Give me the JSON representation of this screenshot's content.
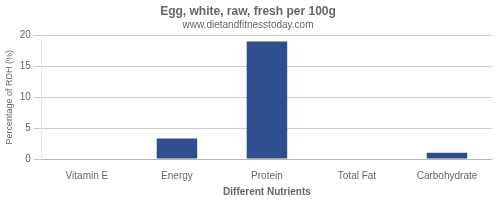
{
  "chart_data": {
    "type": "bar",
    "title": "Egg, white, raw, fresh per 100g",
    "subtitle": "www.dietandfitnesstoday.com",
    "xlabel": "Different Nutrients",
    "ylabel": "Percentage of RDH (%)",
    "categories": [
      "Vitamin E",
      "Energy",
      "Protein",
      "Total Fat",
      "Carbohydrate"
    ],
    "values": [
      0.0,
      3.3,
      19.0,
      0.0,
      1.0
    ],
    "color": "#2d4f8e",
    "ylim": [
      0,
      20
    ],
    "yticks": [
      0,
      5,
      10,
      15,
      20
    ],
    "grid": true
  }
}
